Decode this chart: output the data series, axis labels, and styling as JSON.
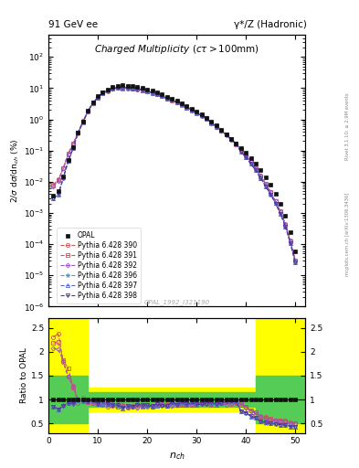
{
  "title_left": "91 GeV ee",
  "title_right": "γ*/Z (Hadronic)",
  "plot_title": "Charged Multiplicity",
  "plot_subtitle": "(cτ > 100mm)",
  "ylabel_main": "2/σ dσ/dn_{ch} (%)",
  "ylabel_ratio": "Ratio to OPAL",
  "xlabel": "n_{ch}",
  "watermark": "OPAL_1992_I321190",
  "rivet_text": "Rivet 3.1.10; ≥ 2.9M events",
  "mcplots_text": "mcplots.cern.ch [arXiv:1306.3436]",
  "color_opal": "#111111",
  "color_390": "#cc5555",
  "color_391": "#cc5555",
  "color_392": "#9955cc",
  "color_396": "#5599cc",
  "color_397": "#5566cc",
  "color_398": "#553399",
  "ylim_main": [
    1e-06,
    500
  ],
  "xmin": 0,
  "xmax": 52,
  "ratio_ylim": [
    0.3,
    2.7
  ],
  "ratio_yticks": [
    0.5,
    1.0,
    1.5,
    2.0,
    2.5
  ],
  "band_yellow": "#ffff00",
  "band_green": "#55cc55",
  "band_steps": [
    {
      "xmin": 0,
      "xmax": 8,
      "ymin_y": 0.3,
      "ymax_y": 2.7,
      "ymin_g": 0.5,
      "ymax_g": 1.5
    },
    {
      "xmin": 8,
      "xmax": 42,
      "ymin_y": 0.75,
      "ymax_y": 1.25,
      "ymin_g": 0.85,
      "ymax_g": 1.15
    },
    {
      "xmin": 42,
      "xmax": 52,
      "ymin_y": 0.3,
      "ymax_y": 2.7,
      "ymin_g": 0.5,
      "ymax_g": 1.5
    }
  ]
}
